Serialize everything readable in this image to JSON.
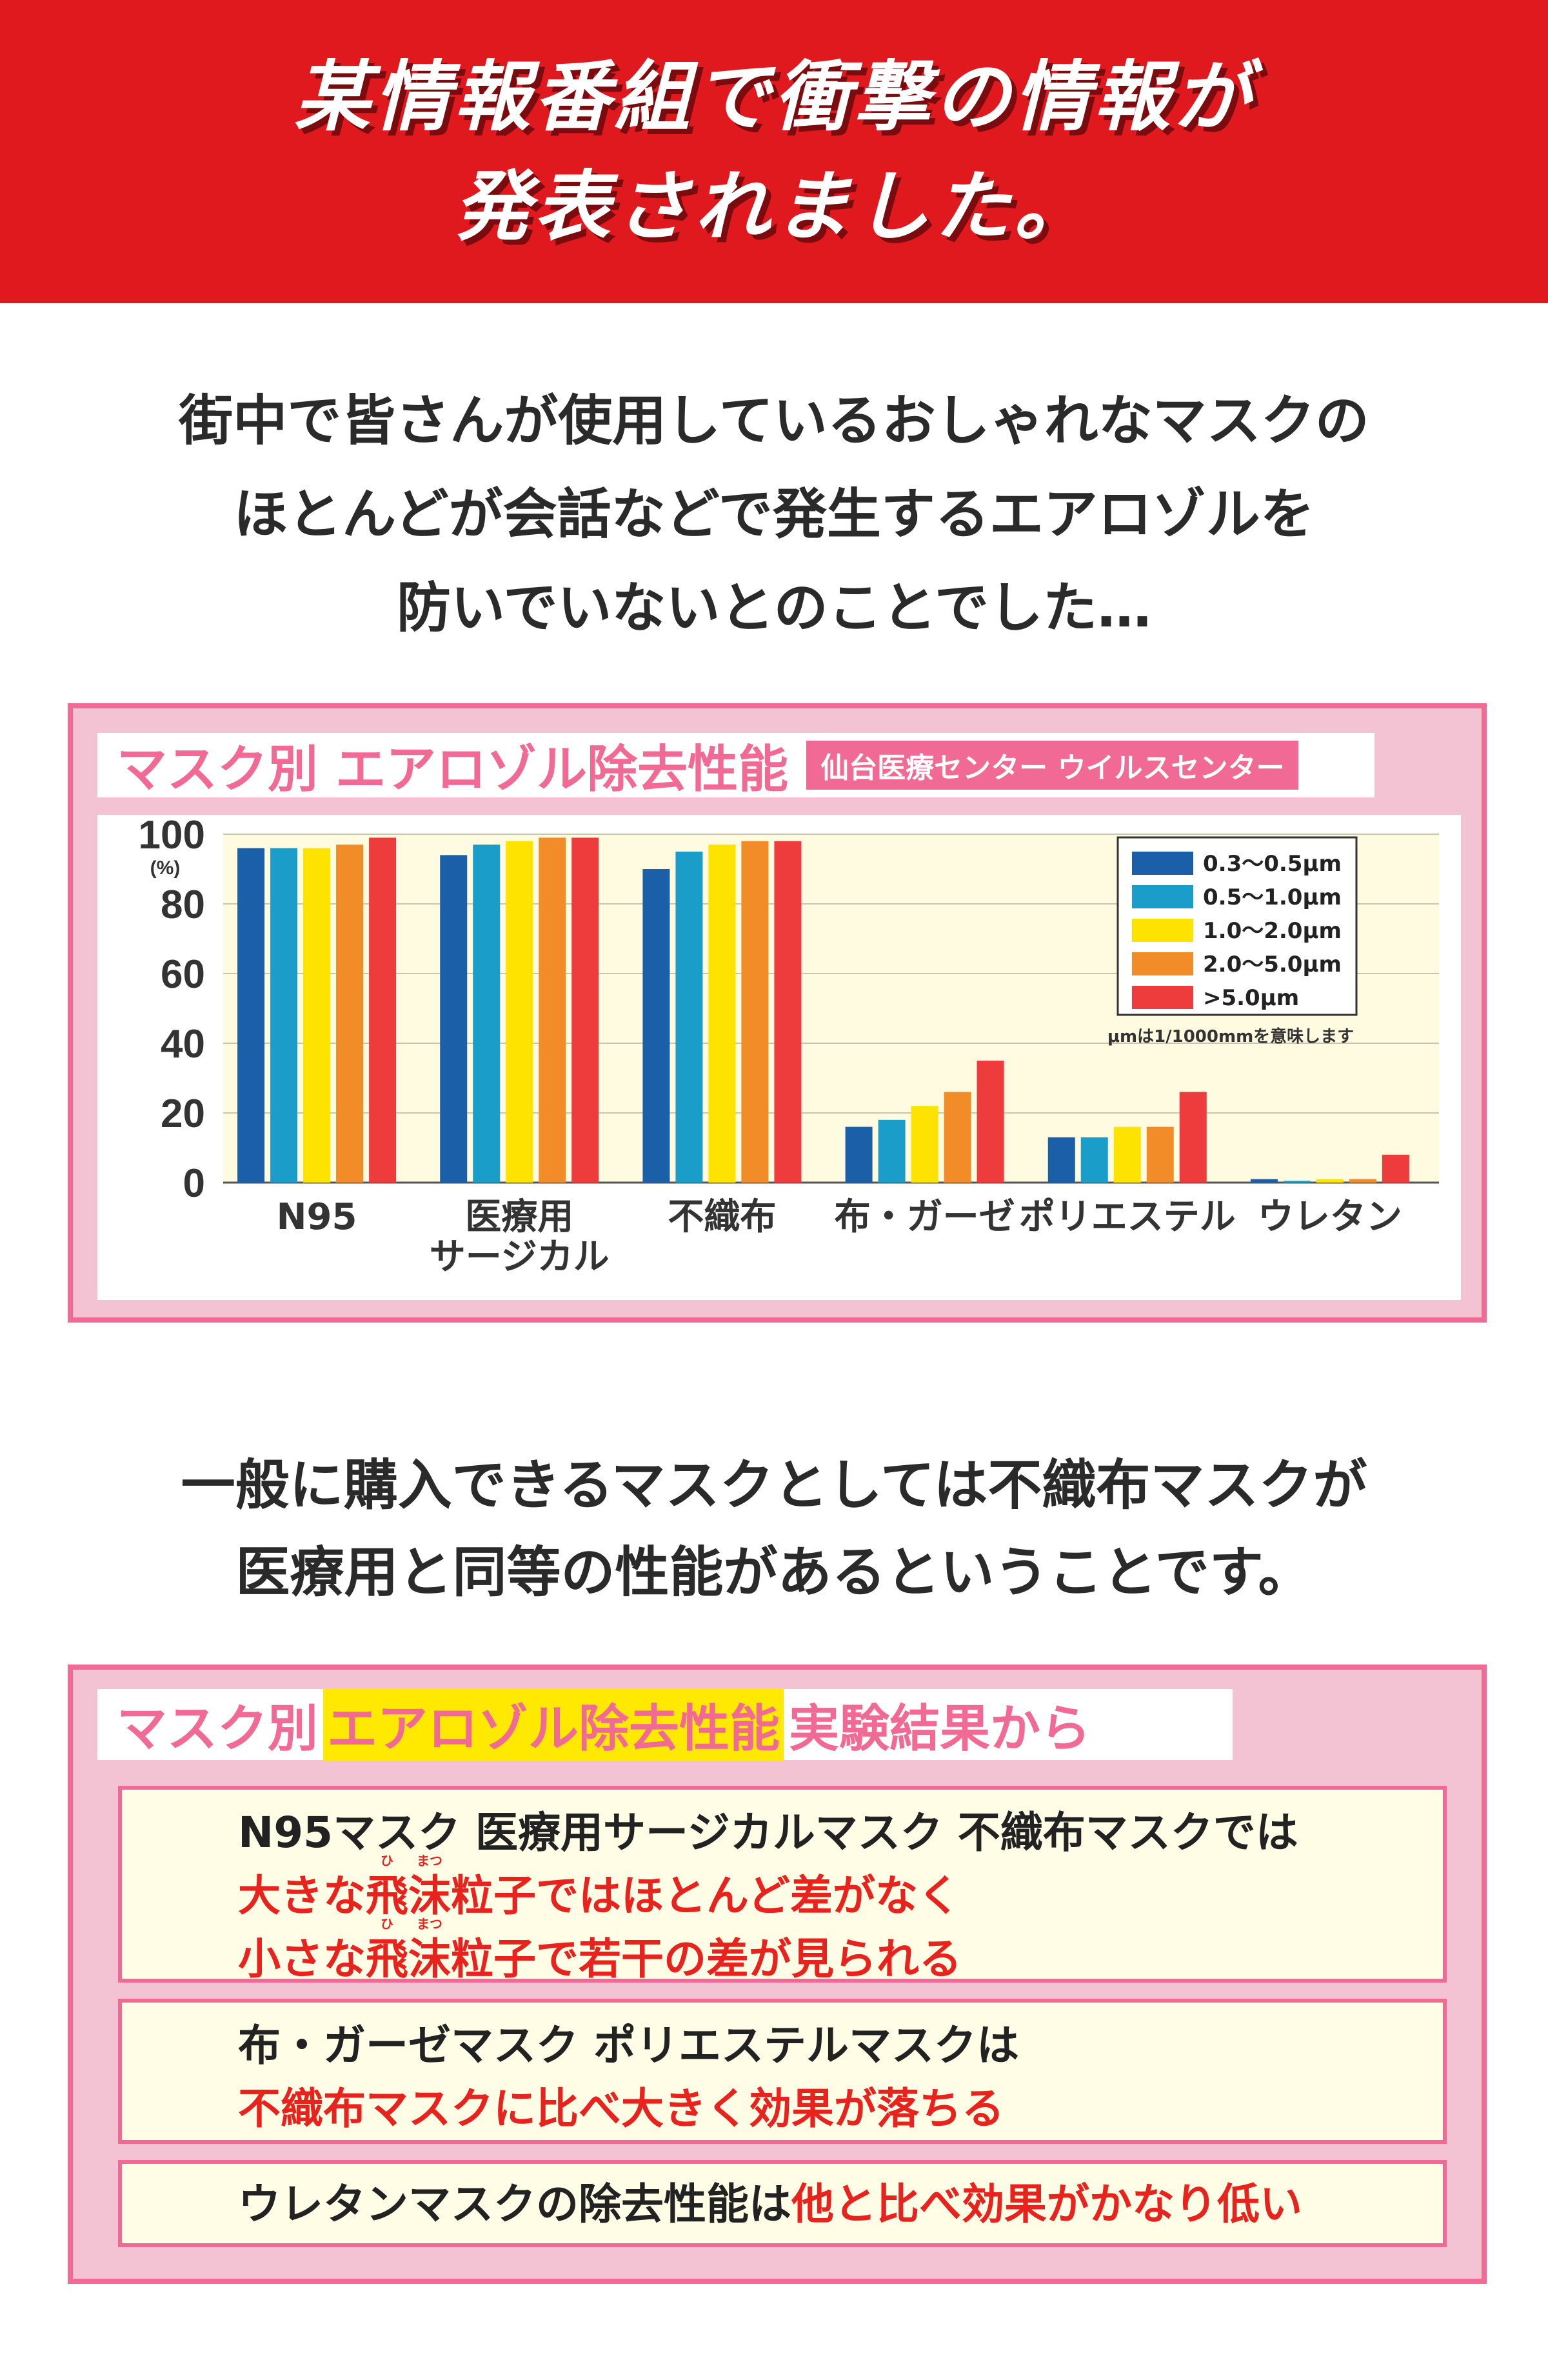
{
  "banner": {
    "line1": "某情報番組で衝撃の情報が",
    "line2": "発表されました。"
  },
  "intro": {
    "line1": "街中で皆さんが使用しているおしゃれなマスクの",
    "line2": "ほとんどが会話などで発生するエアロゾルを",
    "line3": "防いでいないとのことでした…"
  },
  "chart_panel": {
    "title": "マスク別 エアロゾル除去性能",
    "source": "仙台医療センター ウイルスセンター"
  },
  "chart_data": {
    "type": "bar",
    "title": "マスク別 エアロゾル除去性能",
    "ylabel": "(%)",
    "xlabel": "",
    "ylim": [
      0,
      100
    ],
    "yticks": [
      "0",
      "20",
      "40",
      "60",
      "80",
      "100"
    ],
    "grid": true,
    "legend_position": "top-right",
    "legend_note": "μmは1/1000mmを意味します",
    "categories": [
      "N95",
      "医療用\nサージカル",
      "不織布",
      "布・ガーゼ",
      "ポリエステル",
      "ウレタン"
    ],
    "series": [
      {
        "name": "0.3〜0.5μm",
        "color": "#1b5fa8",
        "values": [
          96,
          94,
          90,
          16,
          13,
          1
        ]
      },
      {
        "name": "0.5〜1.0μm",
        "color": "#1a9ec9",
        "values": [
          96,
          97,
          95,
          18,
          13,
          0.5
        ]
      },
      {
        "name": "1.0〜2.0μm",
        "color": "#ffe300",
        "values": [
          96,
          98,
          97,
          22,
          16,
          1
        ]
      },
      {
        "name": "2.0〜5.0μm",
        "color": "#f28c28",
        "values": [
          97,
          99,
          98,
          26,
          16,
          1
        ]
      },
      {
        "name": ">5.0μm",
        "color": "#ee3b3b",
        "values": [
          99,
          99,
          98,
          35,
          26,
          8
        ]
      }
    ]
  },
  "summary": {
    "line1": "一般に購入できるマスクとしては不織布マスクが",
    "line2": "医療用と同等の性能があるということです。"
  },
  "results_panel": {
    "title_pre": "マスク別",
    "title_highlight": "エアロゾル除去性能",
    "title_post": "実験結果から",
    "box1": {
      "line1": "N95マスク 医療用サージカルマスク 不織布マスクでは",
      "line2_a": "大きな",
      "hi": "飛",
      "hi_ruby": "ひ",
      "matsu": "沫",
      "matsu_ruby": "まつ",
      "line2_b": "粒子ではほとんど差がなく",
      "line3_a": "小さな",
      "line3_b": "粒子で若干の差が見られる"
    },
    "box2": {
      "line1": "布・ガーゼマスク ポリエステルマスクは",
      "line2": "不織布マスクに比べ大きく効果が落ちる"
    },
    "box3": {
      "text_black": "ウレタンマスクの除去性能は",
      "text_red": "他と比べ効果がかなり低い"
    }
  }
}
